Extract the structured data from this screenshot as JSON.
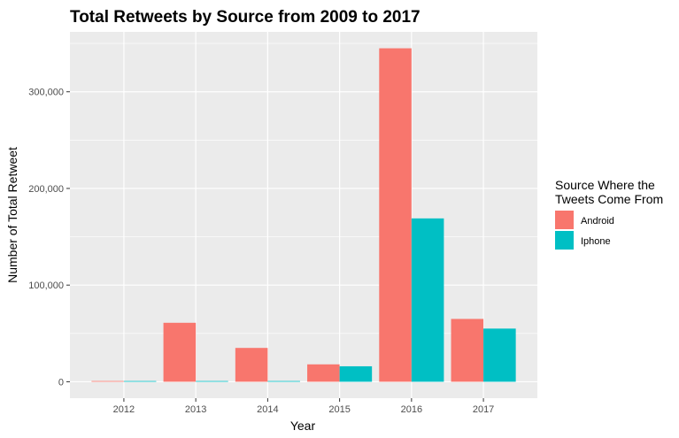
{
  "chart_data": {
    "type": "bar",
    "title": "Total Retweets by Source from 2009 to 2017",
    "xlabel": "Year",
    "ylabel": "Number of Total Retweet",
    "categories": [
      "2012",
      "2013",
      "2014",
      "2015",
      "2016",
      "2017"
    ],
    "series": [
      {
        "name": "Android",
        "color": "#F8766D",
        "values": [
          500,
          61000,
          35000,
          18000,
          345000,
          65000
        ]
      },
      {
        "name": "Iphone",
        "color": "#00BFC4",
        "values": [
          500,
          500,
          0,
          16000,
          169000,
          55000
        ]
      }
    ],
    "ylim": [
      -17000,
      362000
    ],
    "yticks": [
      0,
      100000,
      200000,
      300000
    ],
    "ytick_labels": [
      "0",
      "100,000",
      "200,000",
      "300,000"
    ],
    "grid": true,
    "legend": {
      "title_line1": "Source Where the",
      "title_line2": "Tweets Come From",
      "position": "right"
    }
  }
}
